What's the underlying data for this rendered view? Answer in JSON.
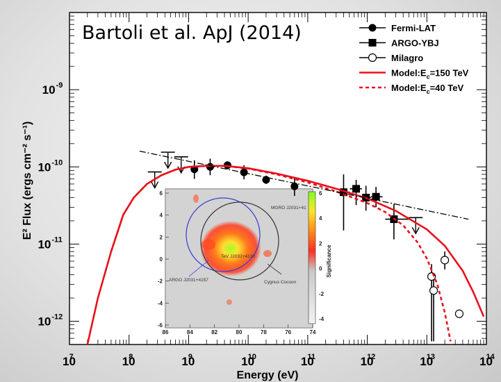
{
  "chart_data": {
    "type": "scatter",
    "annotation": "Bartoli et al. ApJ (2014)",
    "xlabel": "Energy (eV)",
    "ylabel": "E² Flux (ergs cm⁻² s⁻¹)",
    "xscale": "log",
    "yscale": "log",
    "xlim": [
      10000000.0,
      100000000000000.0
    ],
    "ylim": [
      5e-13,
      1e-08
    ],
    "x_ticks": [
      {
        "value": 10000000.0,
        "label": "10",
        "exp": "7"
      },
      {
        "value": 100000000.0,
        "label": "10",
        "exp": "8"
      },
      {
        "value": 1000000000.0,
        "label": "10",
        "exp": "9"
      },
      {
        "value": 10000000000.0,
        "label": "10",
        "exp": "10"
      },
      {
        "value": 100000000000.0,
        "label": "10",
        "exp": "11"
      },
      {
        "value": 1000000000000.0,
        "label": "10",
        "exp": "12"
      },
      {
        "value": 10000000000000.0,
        "label": "10",
        "exp": "13"
      },
      {
        "value": 100000000000000.0,
        "label": "10",
        "exp": "14"
      }
    ],
    "y_ticks": [
      {
        "value": 1e-09,
        "label": "10",
        "exp": "-9"
      },
      {
        "value": 1e-10,
        "label": "10",
        "exp": "-10"
      },
      {
        "value": 1e-11,
        "label": "10",
        "exp": "-11"
      },
      {
        "value": 1e-12,
        "label": "10",
        "exp": "-12"
      }
    ],
    "legend_position": "top-right",
    "series": [
      {
        "name": "Fermi-LAT",
        "kind": "points",
        "marker": "filled-circle",
        "points": [
          {
            "x": 1250000000.0,
            "y": 9.3e-11,
            "ylo": 7e-11,
            "yhi": 1.22e-10
          },
          {
            "x": 2300000000.0,
            "y": 1e-10,
            "ylo": 7.8e-11,
            "yhi": 1.28e-10
          },
          {
            "x": 4500000000.0,
            "y": 1.05e-10,
            "ylo": 9.3e-11,
            "yhi": 1.18e-10
          },
          {
            "x": 8500000000.0,
            "y": 8.5e-11,
            "ylo": 6.9e-11,
            "yhi": 1.05e-10
          },
          {
            "x": 20000000000.0,
            "y": 6.8e-11,
            "ylo": 6e-11,
            "yhi": 7.7e-11
          },
          {
            "x": 60000000000.0,
            "y": 5.6e-11,
            "ylo": 4.2e-11,
            "yhi": 7.4e-11
          }
        ],
        "upper_limits": [
          {
            "x": 270000000.0,
            "y": 8.6e-11
          },
          {
            "x": 450000000.0,
            "y": 1.55e-10
          },
          {
            "x": 750000000.0,
            "y": 1.35e-10
          }
        ]
      },
      {
        "name": "ARGO-YBJ",
        "kind": "points",
        "marker": "filled-square",
        "points": [
          {
            "x": 400000000000.0,
            "y": 4.7e-11,
            "ylo": 1.5e-11,
            "yhi": 8e-11,
            "xlo": 310000000000.0,
            "xhi": 510000000000.0
          },
          {
            "x": 650000000000.0,
            "y": 5.2e-11,
            "ylo": 3.2e-11,
            "yhi": 6.8e-11,
            "xlo": 510000000000.0,
            "xhi": 810000000000.0
          },
          {
            "x": 950000000000.0,
            "y": 4e-11,
            "ylo": 2.7e-11,
            "yhi": 5.7e-11,
            "xlo": 810000000000.0,
            "xhi": 1150000000000.0
          },
          {
            "x": 1400000000000.0,
            "y": 4.1e-11,
            "ylo": 3e-11,
            "yhi": 5.5e-11,
            "xlo": 1150000000000.0,
            "xhi": 1800000000000.0
          },
          {
            "x": 2800000000000.0,
            "y": 2.1e-11,
            "ylo": 1.15e-11,
            "yhi": 3.3e-11,
            "xlo": 2000000000000.0,
            "xhi": 5000000000000.0
          }
        ],
        "upper_limits": [
          {
            "x": 6500000000000.0,
            "y": 2.2e-11
          }
        ]
      },
      {
        "name": "Milagro",
        "kind": "points",
        "marker": "open-circle",
        "points": [
          {
            "x": 12000000000000.0,
            "y": 3.8e-12,
            "ylo": 5.5e-13,
            "yhi": 5.5e-12
          },
          {
            "x": 13000000000000.0,
            "y": 2.5e-12,
            "ylo": 5.5e-13,
            "yhi": 3.5e-12
          },
          {
            "x": 20000000000000.0,
            "y": 6.2e-12,
            "ylo": 4.7e-12,
            "yhi": 8e-12
          },
          {
            "x": 35000000000000.0,
            "y": 1.25e-12,
            "ylo": 1.25e-12,
            "yhi": 1.25e-12
          }
        ]
      },
      {
        "name": "Model:E_c=150 TeV",
        "legend_main": "Model:E",
        "legend_sub": "c",
        "legend_tail": "=150 TeV",
        "kind": "line",
        "style": "solid",
        "color": "#e8101c",
        "points": [
          [
            20000000.0,
            5e-13
          ],
          [
            30000000.0,
            2e-12
          ],
          [
            50000000.0,
            8e-12
          ],
          [
            80000000.0,
            2.4e-11
          ],
          [
            120000000.0,
            4e-11
          ],
          [
            200000000.0,
            6e-11
          ],
          [
            350000000.0,
            7.8e-11
          ],
          [
            600000000.0,
            9.2e-11
          ],
          [
            1000000000.0,
            1e-10
          ],
          [
            2000000000.0,
            1.03e-10
          ],
          [
            4000000000.0,
            1.03e-10
          ],
          [
            10000000000.0,
            9.6e-11
          ],
          [
            30000000000.0,
            8.2e-11
          ],
          [
            100000000000.0,
            6.6e-11
          ],
          [
            300000000000.0,
            5.2e-11
          ],
          [
            1000000000000.0,
            3.9e-11
          ],
          [
            3000000000000.0,
            2.7e-11
          ],
          [
            10000000000000.0,
            1.55e-11
          ],
          [
            20000000000000.0,
            9.5e-12
          ],
          [
            40000000000000.0,
            4.5e-12
          ],
          [
            60000000000000.0,
            2.4e-12
          ],
          [
            90000000000000.0,
            1.15e-12
          ]
        ]
      },
      {
        "name": "Model:E_c=40 TeV",
        "legend_main": "Model:E",
        "legend_sub": "c",
        "legend_tail": "=40 TeV",
        "kind": "line",
        "style": "dashed",
        "color": "#e8101c",
        "points": [
          [
            50000000.0,
            8e-12
          ],
          [
            80000000.0,
            2.4e-11
          ],
          [
            120000000.0,
            4e-11
          ],
          [
            200000000.0,
            6e-11
          ],
          [
            350000000.0,
            7.8e-11
          ],
          [
            600000000.0,
            9.2e-11
          ],
          [
            1000000000.0,
            1e-10
          ],
          [
            2000000000.0,
            1.03e-10
          ],
          [
            4000000000.0,
            1.03e-10
          ],
          [
            10000000000.0,
            9.5e-11
          ],
          [
            30000000000.0,
            8e-11
          ],
          [
            100000000000.0,
            6.3e-11
          ],
          [
            300000000000.0,
            4.8e-11
          ],
          [
            1000000000000.0,
            3.4e-11
          ],
          [
            2000000000000.0,
            2.6e-11
          ],
          [
            4000000000000.0,
            1.75e-11
          ],
          [
            7000000000000.0,
            1.05e-11
          ],
          [
            10000000000000.0,
            6.5e-12
          ],
          [
            15000000000000.0,
            3e-12
          ],
          [
            20000000000000.0,
            1.3e-12
          ],
          [
            25000000000000.0,
            5.5e-13
          ]
        ]
      },
      {
        "kind": "line",
        "style": "dash-dot",
        "color": "#000000",
        "points": [
          [
            150000000.0,
            1.6e-10
          ],
          [
            50000000000000.0,
            2.1e-11
          ]
        ]
      }
    ],
    "inset": {
      "colorbar_label": "Significance",
      "colorbar_ticks": [
        "6",
        "4",
        "2",
        "0",
        "-2",
        "-4"
      ],
      "x_ticks": [
        "86",
        "84",
        "82",
        "80",
        "78",
        "76",
        "74"
      ],
      "y_ticks": [
        "6",
        "4",
        "2",
        "0",
        "-2",
        "-4",
        "-6"
      ],
      "annotations": [
        "ARGO J2031+4157",
        "Cygnus Cocoon",
        "MGRO J2031+41",
        "TeV J2032+4130"
      ]
    }
  }
}
